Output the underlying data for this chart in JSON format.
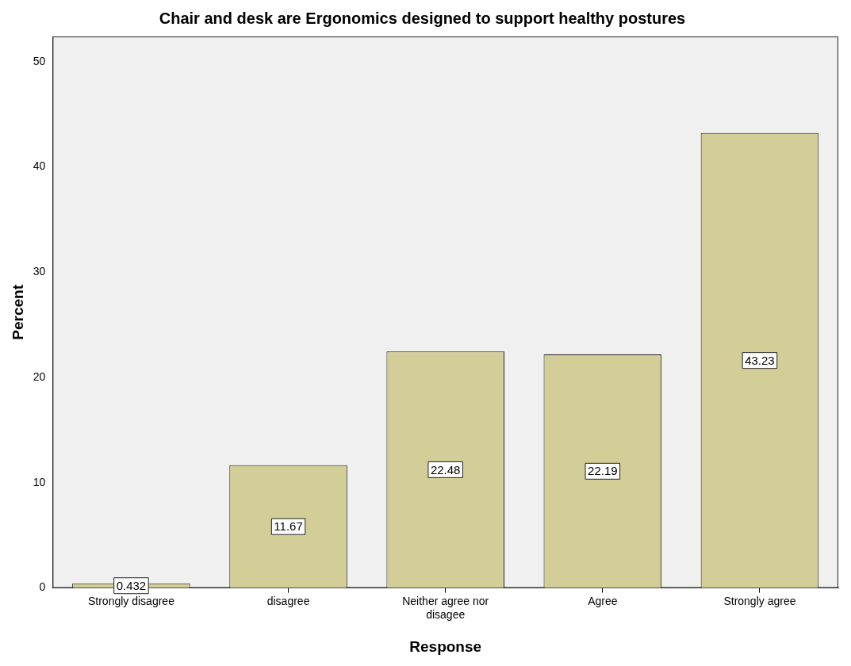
{
  "chart_data": {
    "type": "bar",
    "title": "Chair and desk are Ergonomics designed to support healthy postures",
    "xlabel": "Response",
    "ylabel": "Percent",
    "categories": [
      "Strongly disagree",
      "disagree",
      "Neither agree nor disagee",
      "Agree",
      "Strongly agree"
    ],
    "values": [
      0.432,
      11.67,
      22.48,
      22.19,
      43.23
    ],
    "color": "#d3ce97",
    "ylim": [
      0,
      52.4
    ],
    "yticks": [
      0,
      10,
      20,
      30,
      40,
      50
    ],
    "grid": false,
    "data_labels": true
  }
}
